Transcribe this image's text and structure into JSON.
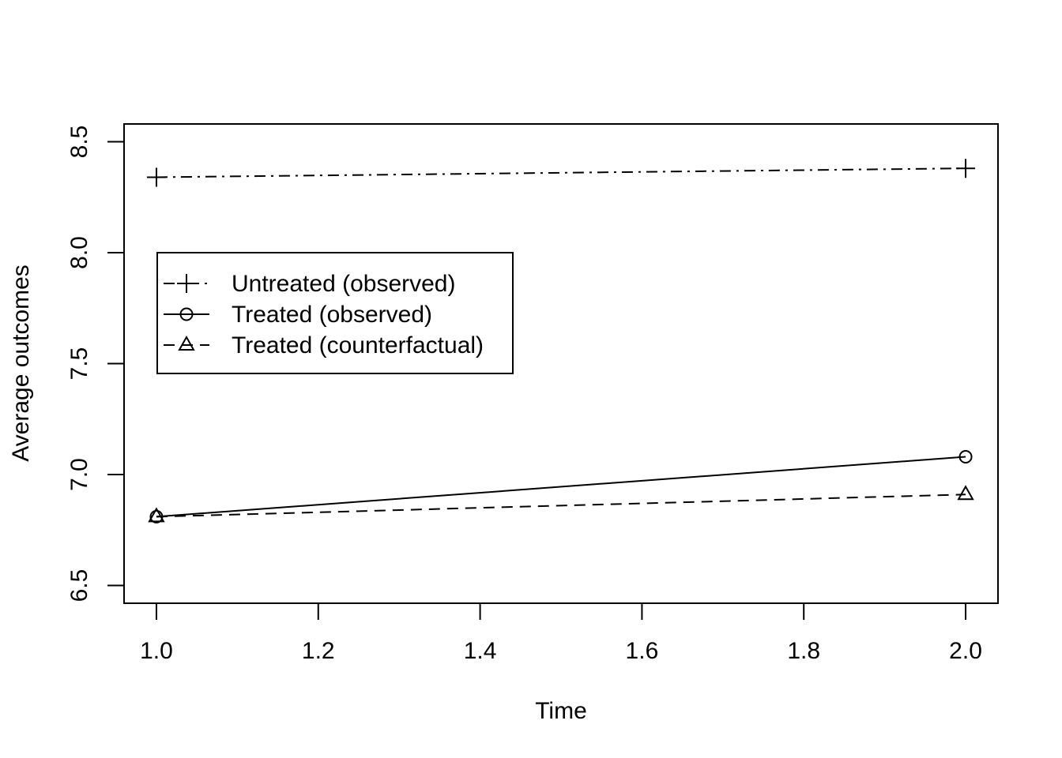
{
  "chart_data": {
    "type": "line",
    "xlabel": "Time",
    "ylabel": "Average outcomes",
    "xlim": [
      0.96,
      2.04
    ],
    "ylim": [
      6.42,
      8.58
    ],
    "x_ticks": [
      "1.0",
      "1.2",
      "1.4",
      "1.6",
      "1.8",
      "2.0"
    ],
    "y_ticks": [
      "6.5",
      "7.0",
      "7.5",
      "8.0",
      "8.5"
    ],
    "grid": false,
    "legend_position": "left",
    "series": [
      {
        "name": "Untreated (observed)",
        "x": [
          1,
          2
        ],
        "y": [
          8.34,
          8.38
        ],
        "line_style": "dashdot",
        "marker": "plus"
      },
      {
        "name": "Treated (observed)",
        "x": [
          1,
          2
        ],
        "y": [
          6.81,
          7.08
        ],
        "line_style": "solid",
        "marker": "circle"
      },
      {
        "name": "Treated (counterfactual)",
        "x": [
          1,
          2
        ],
        "y": [
          6.81,
          6.91
        ],
        "line_style": "dashed",
        "marker": "triangle"
      }
    ]
  }
}
